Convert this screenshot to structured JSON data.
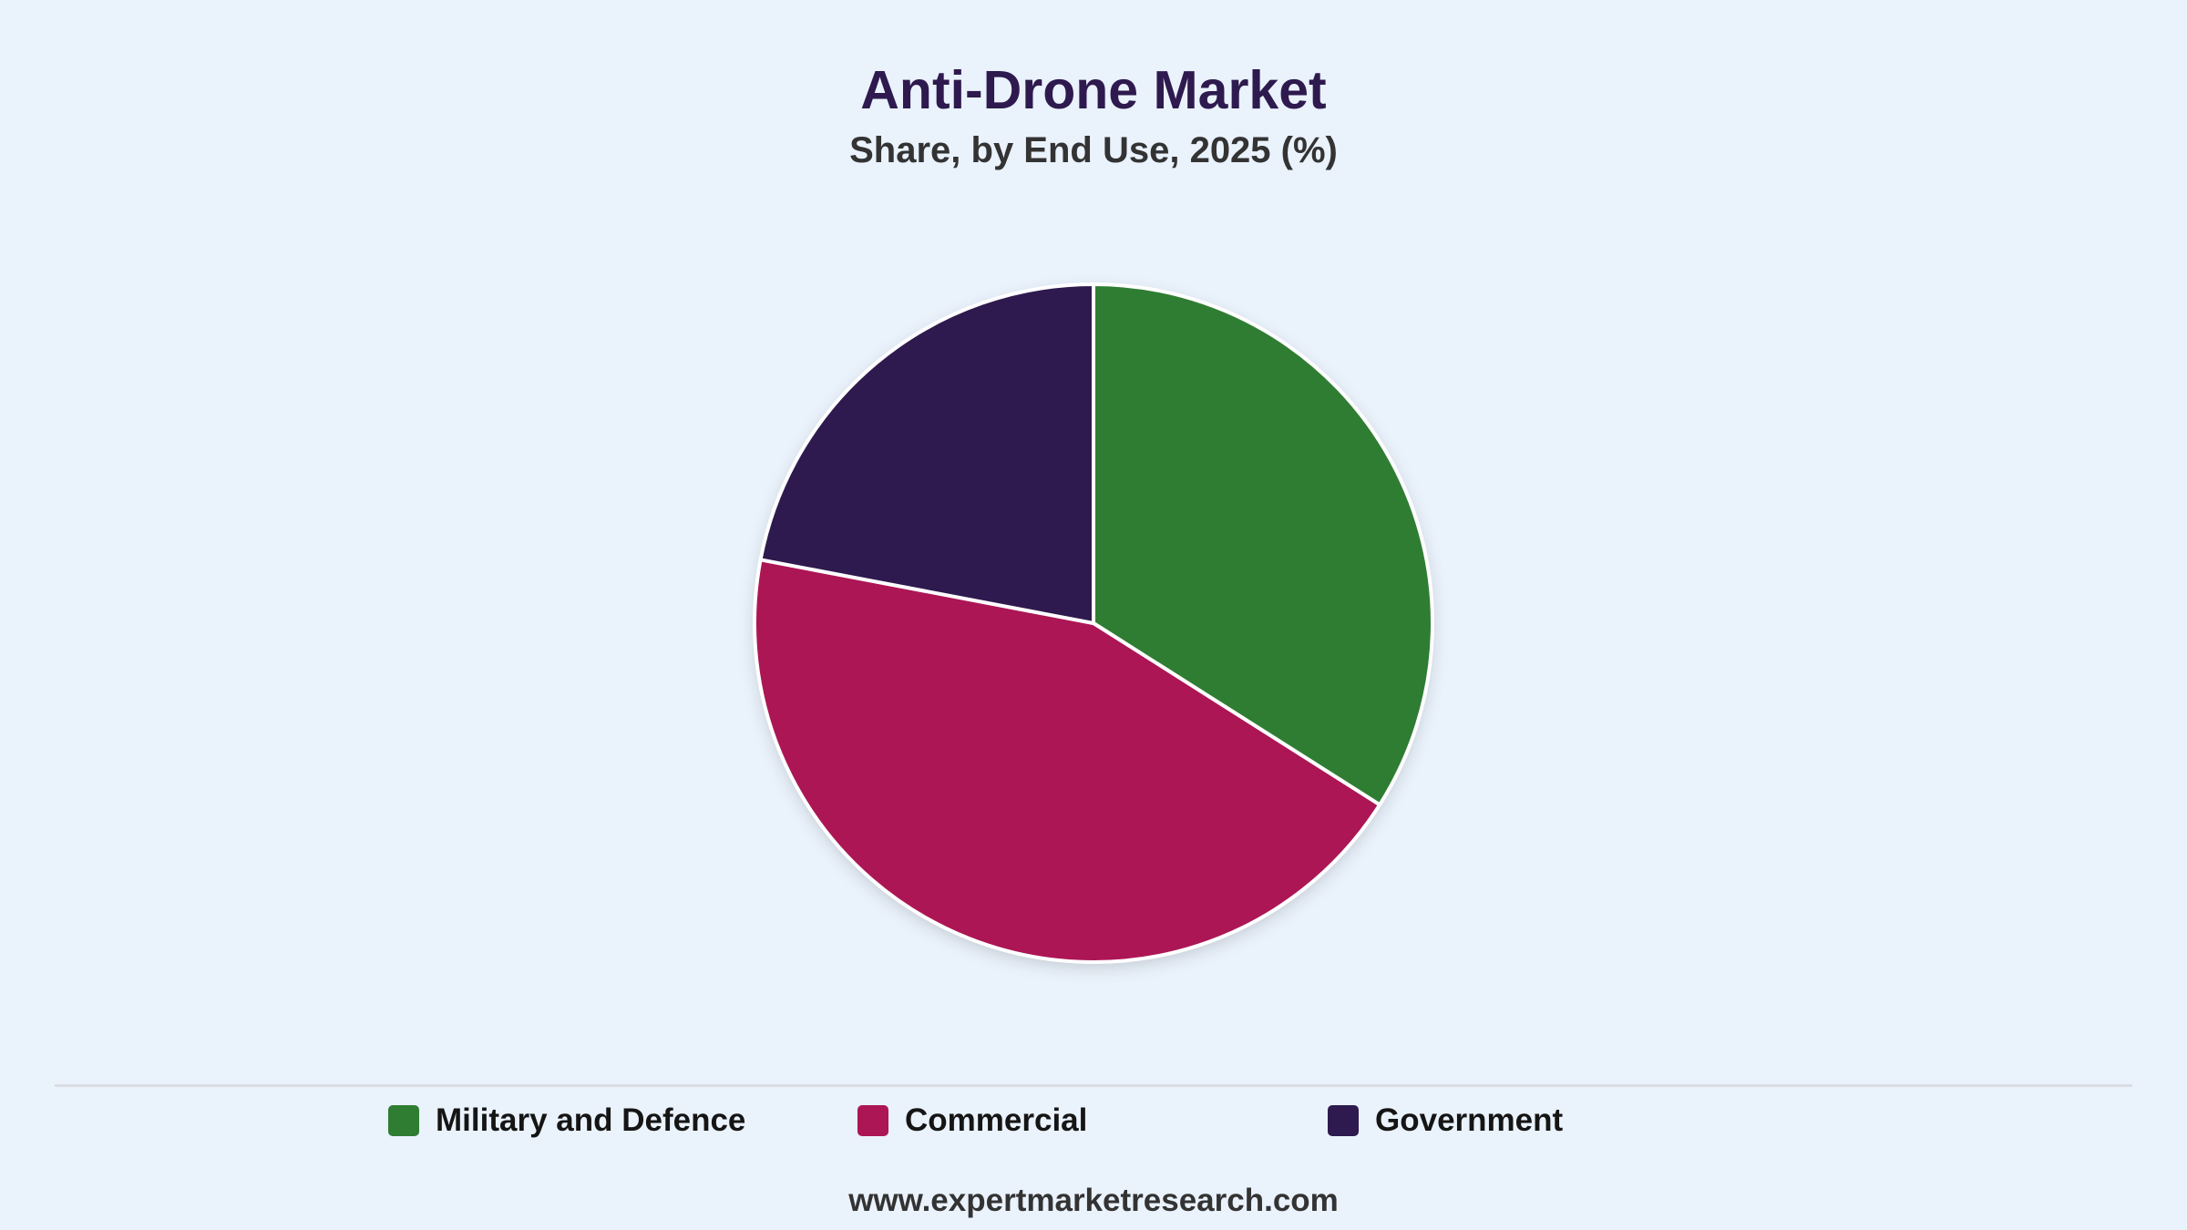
{
  "chart_data": {
    "type": "pie",
    "title": "Anti-Drone Market",
    "subtitle": "Share, by End Use, 2025 (%)",
    "slices": [
      {
        "label": "Military and Defence",
        "value": 34,
        "color": "#2f7d32"
      },
      {
        "label": "Commercial",
        "value": 44,
        "color": "#ac1655"
      },
      {
        "label": "Government",
        "value": 22,
        "color": "#2e1a4e"
      }
    ],
    "start_angle_deg": 0,
    "direction": "clockwise",
    "slice_border_color": "#ffffff",
    "legend_position": "bottom"
  },
  "source": "www.expertmarketresearch.com",
  "colors": {
    "background": "#eaf2fc",
    "title": "#2e1a4e",
    "subtitle": "#333333"
  }
}
